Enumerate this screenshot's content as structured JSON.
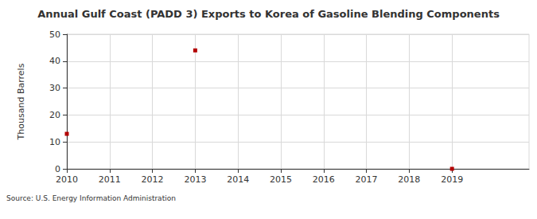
{
  "chart_data": {
    "type": "line",
    "title": "Annual Gulf Coast (PADD 3) Exports to Korea of Gasoline Blending Components",
    "y_label": "Thousand Barrels",
    "source": "Source: U.S. Energy Information Administration",
    "x": [
      2010,
      2011,
      2012,
      2013,
      2014,
      2015,
      2016,
      2017,
      2018,
      2019
    ],
    "values": [
      13,
      null,
      null,
      44,
      null,
      null,
      null,
      null,
      null,
      0
    ],
    "color": "#b30000",
    "marker": "square",
    "xlim": [
      2010,
      2020.8
    ],
    "xticks": [
      2010,
      2011,
      2012,
      2013,
      2014,
      2015,
      2016,
      2017,
      2018,
      2019
    ],
    "ylim": [
      0,
      50
    ],
    "yticks": [
      0,
      10,
      20,
      30,
      40,
      50
    ],
    "grid": true
  }
}
